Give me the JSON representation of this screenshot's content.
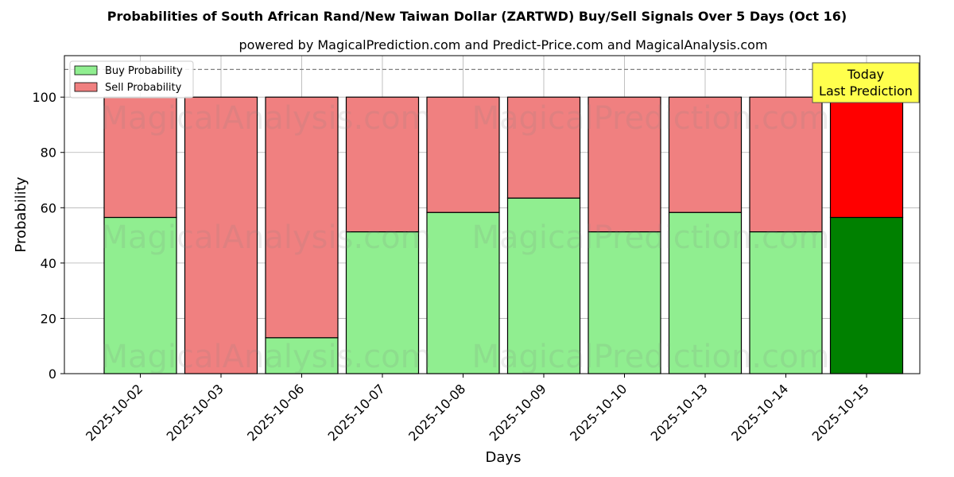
{
  "chart_data": {
    "type": "bar",
    "stacked": true,
    "title": "Probabilities of South African Rand/New Taiwan Dollar (ZARTWD) Buy/Sell Signals Over 5 Days (Oct 16)",
    "subtitle": "powered by MagicalPrediction.com and Predict-Price.com and MagicalAnalysis.com",
    "xlabel": "Days",
    "ylabel": "Probability",
    "ylim": [
      0,
      115
    ],
    "yticks": [
      0,
      20,
      40,
      60,
      80,
      100
    ],
    "grid": true,
    "legend_position": "top-left",
    "reference_line": 110,
    "categories": [
      "2025-10-02",
      "2025-10-03",
      "2025-10-06",
      "2025-10-07",
      "2025-10-08",
      "2025-10-09",
      "2025-10-10",
      "2025-10-13",
      "2025-10-14",
      "2025-10-15"
    ],
    "series": [
      {
        "name": "Buy Probability",
        "color": "#90ee90",
        "highlight_color": "#008000",
        "values": [
          56.5,
          0,
          13,
          51.3,
          58.3,
          63.5,
          51.3,
          58.3,
          51.3,
          56.5
        ]
      },
      {
        "name": "Sell Probability",
        "color": "#f08080",
        "highlight_color": "#ff0000",
        "values": [
          43.5,
          100,
          87,
          48.7,
          41.7,
          36.5,
          48.7,
          41.7,
          48.7,
          43.5
        ]
      }
    ],
    "highlight_index": 9,
    "annotation": {
      "lines": [
        "Today",
        "Last Prediction"
      ],
      "bg": "#ffff4d"
    },
    "watermark": "MagicalAnalysis.com    MagicalPrediction.com"
  }
}
